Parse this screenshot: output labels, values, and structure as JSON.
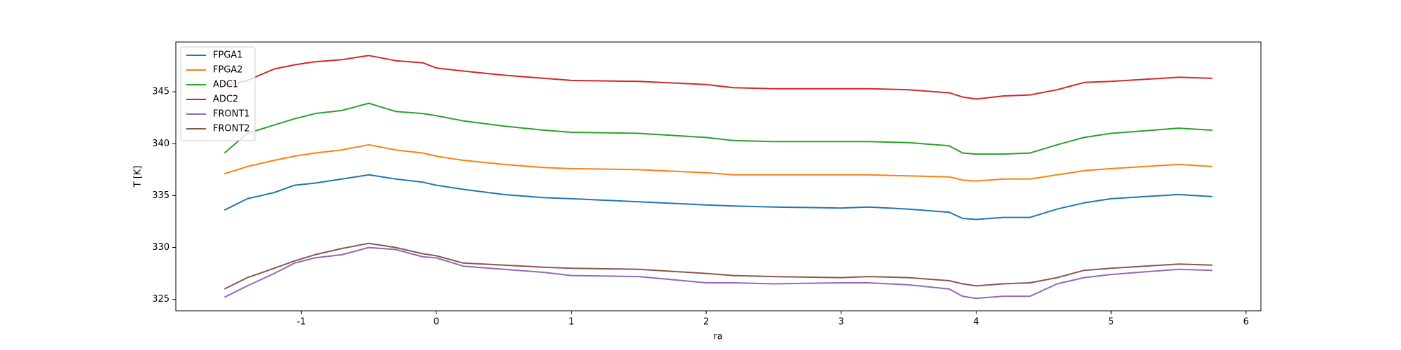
{
  "chart_data": {
    "type": "line",
    "x_label": "ra",
    "y_label": "T [K]",
    "x": [
      -1.57,
      -1.4,
      -1.2,
      -1.05,
      -0.9,
      -0.7,
      -0.5,
      -0.3,
      -0.1,
      0.0,
      0.2,
      0.5,
      0.8,
      1.0,
      1.5,
      2.0,
      2.2,
      2.5,
      3.0,
      3.2,
      3.5,
      3.8,
      3.9,
      4.0,
      4.2,
      4.4,
      4.6,
      4.8,
      5.0,
      5.5,
      5.75
    ],
    "series": [
      {
        "name": "FPGA1",
        "color": "#1f77b4",
        "values": [
          333.6,
          334.7,
          335.3,
          336.0,
          336.2,
          336.6,
          337.0,
          336.6,
          336.3,
          336.0,
          335.6,
          335.1,
          334.8,
          334.7,
          334.4,
          334.1,
          334.0,
          333.9,
          333.8,
          333.9,
          333.7,
          333.4,
          332.8,
          332.7,
          332.9,
          332.9,
          333.7,
          334.3,
          334.7,
          335.1,
          334.9
        ]
      },
      {
        "name": "FPGA2",
        "color": "#ff7f0e",
        "values": [
          337.1,
          337.8,
          338.4,
          338.8,
          339.1,
          339.4,
          339.9,
          339.4,
          339.1,
          338.8,
          338.4,
          338.0,
          337.7,
          337.6,
          337.5,
          337.2,
          337.0,
          337.0,
          337.0,
          337.0,
          336.9,
          336.8,
          336.5,
          336.4,
          336.6,
          336.6,
          337.0,
          337.4,
          337.6,
          338.0,
          337.8
        ]
      },
      {
        "name": "ADC1",
        "color": "#2ca02c",
        "values": [
          339.1,
          341.0,
          341.8,
          342.4,
          342.9,
          343.2,
          343.9,
          343.1,
          342.9,
          342.7,
          342.2,
          341.7,
          341.3,
          341.1,
          341.0,
          340.6,
          340.3,
          340.2,
          340.2,
          340.2,
          340.1,
          339.8,
          339.1,
          339.0,
          339.0,
          339.1,
          339.9,
          340.6,
          341.0,
          341.5,
          341.3
        ]
      },
      {
        "name": "ADC2",
        "color": "#d62728",
        "values": [
          345.6,
          346.1,
          347.2,
          347.6,
          347.9,
          348.1,
          348.5,
          348.0,
          347.8,
          347.3,
          347.0,
          346.6,
          346.3,
          346.1,
          346.0,
          345.7,
          345.4,
          345.3,
          345.3,
          345.3,
          345.2,
          344.9,
          344.5,
          344.3,
          344.6,
          344.7,
          345.2,
          345.9,
          346.0,
          346.4,
          346.3
        ]
      },
      {
        "name": "FRONT1",
        "color": "#9467bd",
        "values": [
          325.2,
          326.3,
          327.5,
          328.5,
          329.0,
          329.3,
          330.0,
          329.8,
          329.1,
          329.0,
          328.2,
          327.9,
          327.6,
          327.3,
          327.2,
          326.6,
          326.6,
          326.5,
          326.6,
          326.6,
          326.4,
          326.0,
          325.3,
          325.1,
          325.3,
          325.3,
          326.5,
          327.1,
          327.4,
          327.9,
          327.8
        ]
      },
      {
        "name": "FRONT2",
        "color": "#8c564b",
        "values": [
          326.0,
          327.1,
          328.0,
          328.7,
          329.3,
          329.9,
          330.4,
          330.0,
          329.4,
          329.2,
          328.5,
          328.3,
          328.1,
          328.0,
          327.9,
          327.5,
          327.3,
          327.2,
          327.1,
          327.2,
          327.1,
          326.8,
          326.5,
          326.3,
          326.5,
          326.6,
          327.1,
          327.8,
          328.0,
          328.4,
          328.3
        ]
      }
    ],
    "xlim": [
      -1.93,
      6.11
    ],
    "ylim": [
      323.9,
      349.8
    ],
    "xticks": [
      -1,
      0,
      1,
      2,
      3,
      4,
      5,
      6
    ],
    "yticks": [
      325,
      330,
      335,
      340,
      345
    ],
    "grid": false,
    "legend": "upper-left"
  }
}
